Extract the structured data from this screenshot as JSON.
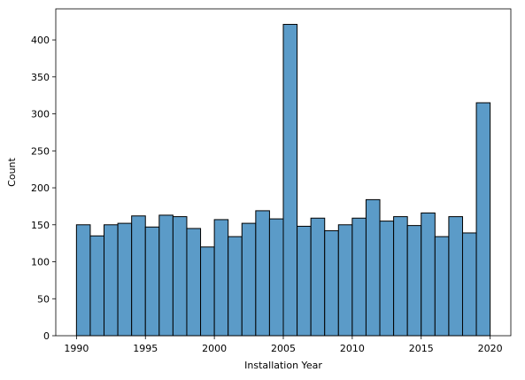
{
  "chart_data": {
    "type": "bar",
    "histogram": true,
    "title": "",
    "xlabel": "Installation Year",
    "ylabel": "Count",
    "bins": [
      {
        "start": 1990.0,
        "end": 1991.0,
        "count": 150
      },
      {
        "start": 1991.0,
        "end": 1992.0,
        "count": 135
      },
      {
        "start": 1992.0,
        "end": 1993.0,
        "count": 150
      },
      {
        "start": 1993.0,
        "end": 1994.0,
        "count": 152
      },
      {
        "start": 1994.0,
        "end": 1995.0,
        "count": 162
      },
      {
        "start": 1995.0,
        "end": 1996.0,
        "count": 147
      },
      {
        "start": 1996.0,
        "end": 1997.0,
        "count": 163
      },
      {
        "start": 1997.0,
        "end": 1998.0,
        "count": 161
      },
      {
        "start": 1998.0,
        "end": 1999.0,
        "count": 145
      },
      {
        "start": 1999.0,
        "end": 2000.0,
        "count": 120
      },
      {
        "start": 2000.0,
        "end": 2001.0,
        "count": 157
      },
      {
        "start": 2001.0,
        "end": 2002.0,
        "count": 134
      },
      {
        "start": 2002.0,
        "end": 2003.0,
        "count": 152
      },
      {
        "start": 2003.0,
        "end": 2004.0,
        "count": 169
      },
      {
        "start": 2004.0,
        "end": 2005.0,
        "count": 158
      },
      {
        "start": 2005.0,
        "end": 2006.0,
        "count": 421
      },
      {
        "start": 2006.0,
        "end": 2007.0,
        "count": 148
      },
      {
        "start": 2007.0,
        "end": 2008.0,
        "count": 159
      },
      {
        "start": 2008.0,
        "end": 2009.0,
        "count": 142
      },
      {
        "start": 2009.0,
        "end": 2010.0,
        "count": 150
      },
      {
        "start": 2010.0,
        "end": 2011.0,
        "count": 159
      },
      {
        "start": 2011.0,
        "end": 2012.0,
        "count": 184
      },
      {
        "start": 2012.0,
        "end": 2013.0,
        "count": 155
      },
      {
        "start": 2013.0,
        "end": 2014.0,
        "count": 161
      },
      {
        "start": 2014.0,
        "end": 2015.0,
        "count": 149
      },
      {
        "start": 2015.0,
        "end": 2016.0,
        "count": 166
      },
      {
        "start": 2016.0,
        "end": 2017.0,
        "count": 134
      },
      {
        "start": 2017.0,
        "end": 2018.0,
        "count": 161
      },
      {
        "start": 2018.0,
        "end": 2019.0,
        "count": 139
      },
      {
        "start": 2019.0,
        "end": 2020.0,
        "count": 315
      }
    ],
    "xlim": [
      1988.5,
      2021.5
    ],
    "ylim": [
      0,
      442
    ],
    "xticks": [
      1990,
      1995,
      2000,
      2005,
      2010,
      2015,
      2020
    ],
    "yticks": [
      0,
      50,
      100,
      150,
      200,
      250,
      300,
      350,
      400
    ],
    "grid": false,
    "bar_color": "#5b9bc8",
    "edge_color": "#000000"
  }
}
